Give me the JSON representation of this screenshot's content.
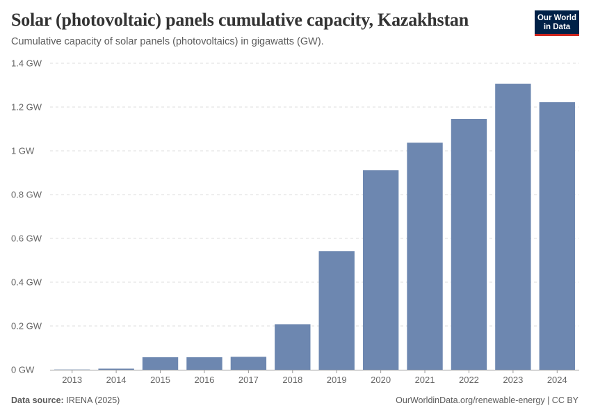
{
  "header": {
    "title": "Solar (photovoltaic) panels cumulative capacity, Kazakhstan",
    "subtitle": "Cumulative capacity of solar panels (photovoltaics) in gigawatts (GW)."
  },
  "logo": {
    "line1": "Our World",
    "line2": "in Data"
  },
  "colors": {
    "bar": "#6d87b0",
    "grid": "#dddddd",
    "axis": "#999999",
    "text": "#5b5b5b"
  },
  "footer": {
    "source_label": "Data source:",
    "source_value": "IRENA (2025)",
    "link": "OurWorldinData.org/renewable-energy | CC BY"
  },
  "chart_data": {
    "type": "bar",
    "title": "Solar (photovoltaic) panels cumulative capacity, Kazakhstan",
    "xlabel": "",
    "ylabel": "",
    "unit": "GW",
    "categories": [
      "2013",
      "2014",
      "2015",
      "2016",
      "2017",
      "2018",
      "2019",
      "2020",
      "2021",
      "2022",
      "2023",
      "2024"
    ],
    "values": [
      0.001,
      0.005,
      0.057,
      0.057,
      0.059,
      0.208,
      0.542,
      0.911,
      1.037,
      1.146,
      1.306,
      1.222
    ],
    "ylim": [
      0,
      1.4
    ],
    "yticks": [
      0,
      0.2,
      0.4,
      0.6,
      0.8,
      1,
      1.2,
      1.4
    ],
    "ytick_labels": [
      "0 GW",
      "0.2 GW",
      "0.4 GW",
      "0.6 GW",
      "0.8 GW",
      "1 GW",
      "1.2 GW",
      "1.4 GW"
    ],
    "grid": true
  }
}
